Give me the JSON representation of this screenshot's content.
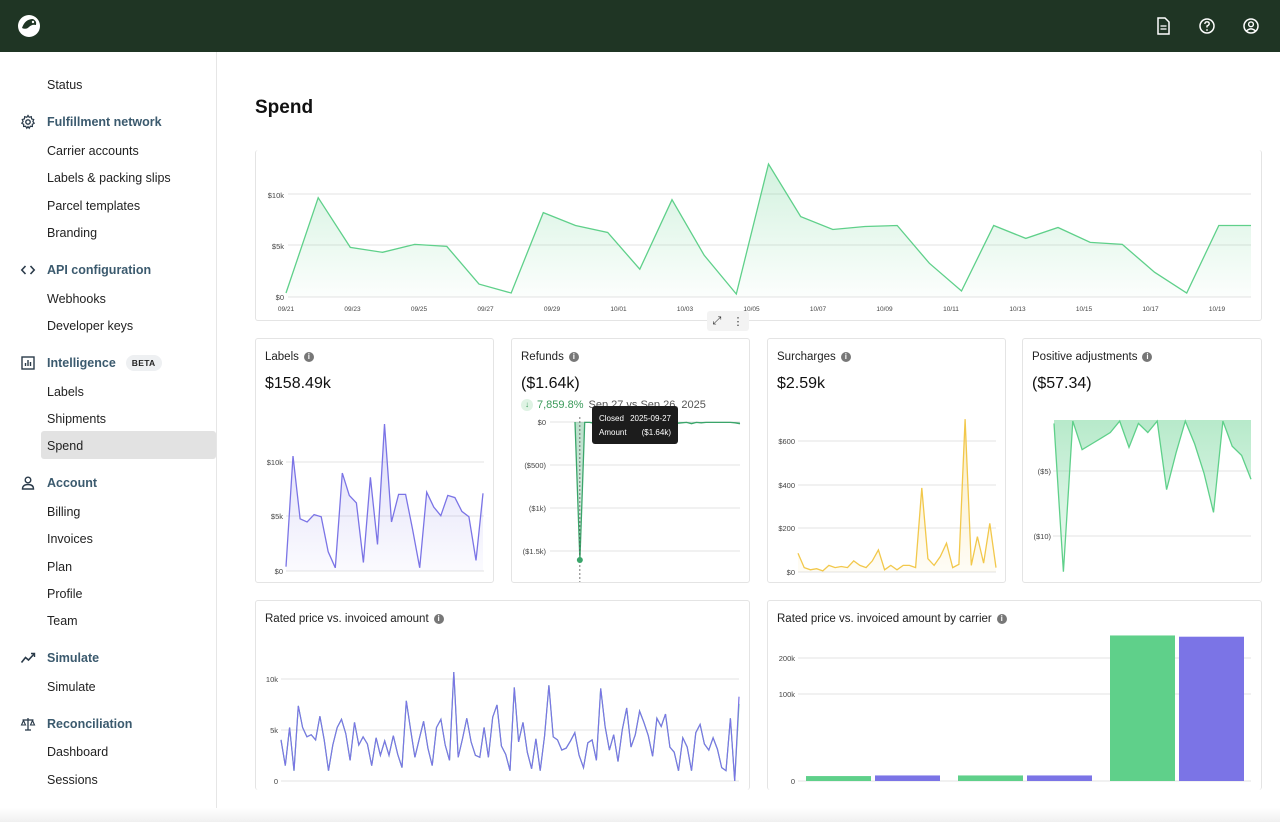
{
  "topbar": {
    "icons": [
      "beaver-logo-icon",
      "document-icon",
      "help-icon",
      "user-icon"
    ]
  },
  "sidebar": {
    "status": "Status",
    "sections": [
      {
        "label": "Fulfillment network",
        "icon": "gear-icon",
        "items": [
          "Carrier accounts",
          "Labels & packing slips",
          "Parcel templates",
          "Branding"
        ]
      },
      {
        "label": "API configuration",
        "icon": "code-icon",
        "items": [
          "Webhooks",
          "Developer keys"
        ]
      },
      {
        "label": "Intelligence",
        "icon": "chart-icon",
        "badge": "BETA",
        "items": [
          "Labels",
          "Shipments",
          "Spend"
        ]
      },
      {
        "label": "Account",
        "icon": "person-icon",
        "items": [
          "Billing",
          "Invoices",
          "Plan",
          "Profile",
          "Team"
        ]
      },
      {
        "label": "Simulate",
        "icon": "trend-icon",
        "items": [
          "Simulate"
        ]
      },
      {
        "label": "Reconciliation",
        "icon": "scale-icon",
        "items": [
          "Dashboard",
          "Sessions"
        ]
      }
    ],
    "active_item": "Spend"
  },
  "page": {
    "title": "Spend"
  },
  "spend_chart": {
    "y_ticks": [
      "$0",
      "$5k",
      "$10k"
    ],
    "x_ticks": [
      "09/21",
      "09/23",
      "09/25",
      "09/27",
      "09/29",
      "10/01",
      "10/03",
      "10/05",
      "10/07",
      "10/09",
      "10/11",
      "10/13",
      "10/15",
      "10/17",
      "10/19"
    ]
  },
  "cards": {
    "labels": {
      "title": "Labels",
      "value": "$158.49k",
      "y_ticks": [
        "$0",
        "$5k",
        "$10k"
      ]
    },
    "refunds": {
      "title": "Refunds",
      "value": "($1.64k)",
      "delta_pct": "7,859.8%",
      "delta_compare": "Sep 27 vs Sep 26, 2025",
      "y_ticks": [
        "$0",
        "($500)",
        "($1k)",
        "($1.5k)"
      ],
      "tooltip": {
        "closed_label": "Closed",
        "closed_value": "2025-09-27",
        "amount_label": "Amount",
        "amount_value": "($1.64k)"
      }
    },
    "surcharges": {
      "title": "Surcharges",
      "value": "$2.59k",
      "y_ticks": [
        "$0",
        "$200",
        "$400",
        "$600"
      ]
    },
    "positive": {
      "title": "Positive adjustments",
      "value": "($57.34)",
      "y_ticks": [
        "($5)",
        "($10)"
      ]
    },
    "rated": {
      "title": "Rated price vs. invoiced amount",
      "y_ticks": [
        "0",
        "5k",
        "10k"
      ]
    },
    "rated_carrier": {
      "title": "Rated price vs. invoiced amount by carrier",
      "y_ticks": [
        "0",
        "100k",
        "200k"
      ]
    }
  },
  "colors": {
    "green": "#5fd08a",
    "purple": "#7b74e6",
    "yellow": "#f2c84b",
    "dark_green": "#1f3524",
    "refund_green": "#3aa56a"
  },
  "chart_data": [
    {
      "type": "area",
      "title": "",
      "x": [
        "09/20",
        "09/21",
        "09/22",
        "09/23",
        "09/24",
        "09/25",
        "09/26",
        "09/27",
        "09/28",
        "09/29",
        "09/30",
        "10/01",
        "10/02",
        "10/03",
        "10/04",
        "10/05",
        "10/06",
        "10/07",
        "10/08",
        "10/09",
        "10/10",
        "10/11",
        "10/12",
        "10/13",
        "10/14",
        "10/15",
        "10/16",
        "10/17",
        "10/18",
        "10/19",
        "10/20"
      ],
      "values": [
        400,
        10000,
        5000,
        4500,
        5300,
        5100,
        1300,
        400,
        8500,
        7200,
        6500,
        2800,
        9800,
        4200,
        300,
        13400,
        8100,
        6800,
        7100,
        7200,
        3400,
        600,
        7200,
        5900,
        7000,
        5500,
        5300,
        2500,
        400,
        7200,
        7200
      ],
      "ylim": [
        0,
        14000
      ]
    },
    {
      "type": "area",
      "title": "Labels",
      "values": [
        400,
        10800,
        4900,
        4600,
        5300,
        5100,
        1800,
        300,
        9200,
        7100,
        6400,
        800,
        8800,
        2500,
        13800,
        4600,
        7200,
        7200,
        3900,
        300,
        7400,
        6000,
        5200,
        7100,
        6900,
        5600,
        5100,
        1000,
        7300
      ],
      "ylim": [
        0,
        14000
      ]
    },
    {
      "type": "area",
      "title": "Refunds",
      "values": [
        0,
        -1640,
        -5,
        -5,
        -15,
        -5,
        -10,
        -5,
        -5,
        -5,
        -40,
        -10,
        -5,
        -40,
        -10,
        -5,
        -5,
        -10,
        -5,
        -5,
        -5,
        -15,
        -10,
        -5,
        -20,
        -5,
        -10,
        -5,
        -5,
        -5,
        -5,
        -5,
        -5,
        -10,
        -20
      ],
      "ylim": [
        -1700,
        0
      ]
    },
    {
      "type": "area",
      "title": "Surcharges",
      "values": [
        85,
        20,
        10,
        15,
        5,
        30,
        20,
        25,
        20,
        50,
        30,
        20,
        50,
        100,
        10,
        30,
        10,
        30,
        30,
        20,
        380,
        60,
        30,
        70,
        130,
        20,
        35,
        690,
        30,
        160,
        40,
        220,
        20
      ],
      "ylim": [
        0,
        700
      ]
    },
    {
      "type": "area",
      "title": "Positive adjustments",
      "values": [
        -0.3,
        -13.3,
        -0.1,
        -2.6,
        -2.1,
        -1.6,
        -1.1,
        -0.1,
        -2.4,
        -0.3,
        -1.1,
        -0.1,
        -6.1,
        -2.9,
        -0.1,
        -2.1,
        -4.7,
        -8.1,
        -0.1,
        -2.3,
        -3.1,
        -5.2
      ],
      "ylim": [
        -13.5,
        0
      ]
    },
    {
      "type": "line",
      "title": "Rated price vs. invoiced amount",
      "series": [
        {
          "values": [
            4000,
            1500,
            5200,
            1000,
            7300,
            5200,
            4300,
            4500,
            4000,
            6300,
            4000,
            1000,
            3500,
            5200,
            6000,
            4600,
            2000,
            5700,
            3500,
            4300,
            3600,
            1500,
            4200,
            2500,
            3900,
            2500,
            4400,
            2600,
            1300,
            7800,
            5000,
            2300,
            4100,
            5800,
            3200,
            1500,
            5200,
            6000,
            3500,
            2000,
            10600,
            2300,
            4100,
            6100,
            3800,
            2500,
            2300,
            5200,
            2300,
            6200,
            7400,
            3400,
            2600,
            1000,
            9100,
            3800,
            5700,
            2800,
            1200,
            4100,
            1000,
            4400,
            9300,
            4300,
            4000,
            3000,
            3200,
            3900,
            4700,
            2500,
            1300,
            3700,
            4000,
            2000,
            9000,
            5300,
            3000,
            4500,
            1900,
            5000,
            7100,
            3300,
            4500,
            6800,
            5700,
            4400,
            2400,
            6100,
            5300,
            6500,
            3300,
            2800,
            1000,
            4200,
            3300,
            1000,
            4700,
            5500,
            3600,
            3000,
            4200,
            3100,
            1300,
            1000,
            6100,
            0,
            7500
          ]
        },
        {
          "values": [
            4000,
            1500,
            5200,
            1000,
            7300,
            5200,
            4300,
            4500,
            4000,
            6300,
            4000,
            1000,
            3500,
            5200,
            6000,
            4600,
            2000,
            5700,
            3500,
            4300,
            3600,
            1500,
            4200,
            2500,
            3900,
            2500,
            4400,
            2600,
            1300,
            7800,
            5000,
            2300,
            4100,
            5800,
            3200,
            1500,
            5200,
            6000,
            3500,
            2000,
            10600,
            2300,
            4100,
            6100,
            3800,
            2500,
            2300,
            5200,
            2300,
            6200,
            7400,
            3400,
            2600,
            1000,
            9100,
            3800,
            5700,
            2800,
            1200,
            4100,
            1000,
            4400,
            9300,
            4300,
            4000,
            3000,
            3200,
            3900,
            4700,
            2500,
            1300,
            3700,
            4000,
            2000,
            9000,
            5300,
            3000,
            4500,
            1900,
            5000,
            7100,
            3300,
            4500,
            6800,
            5700,
            4400,
            2400,
            6100,
            5300,
            6500,
            3300,
            2800,
            1000,
            4200,
            3300,
            1000,
            4700,
            5500,
            3600,
            3000,
            4200,
            3100,
            1300,
            1000,
            6100,
            0,
            8200
          ]
        }
      ],
      "ylim": [
        0,
        14000
      ]
    },
    {
      "type": "bar",
      "title": "Rated price vs. invoiced amount by carrier",
      "categories": [
        "",
        "",
        ""
      ],
      "series": [
        {
          "values": [
            8000,
            9000,
            236000
          ]
        },
        {
          "values": [
            9000,
            9000,
            234000
          ]
        }
      ],
      "ylim": [
        0,
        240000
      ]
    }
  ]
}
